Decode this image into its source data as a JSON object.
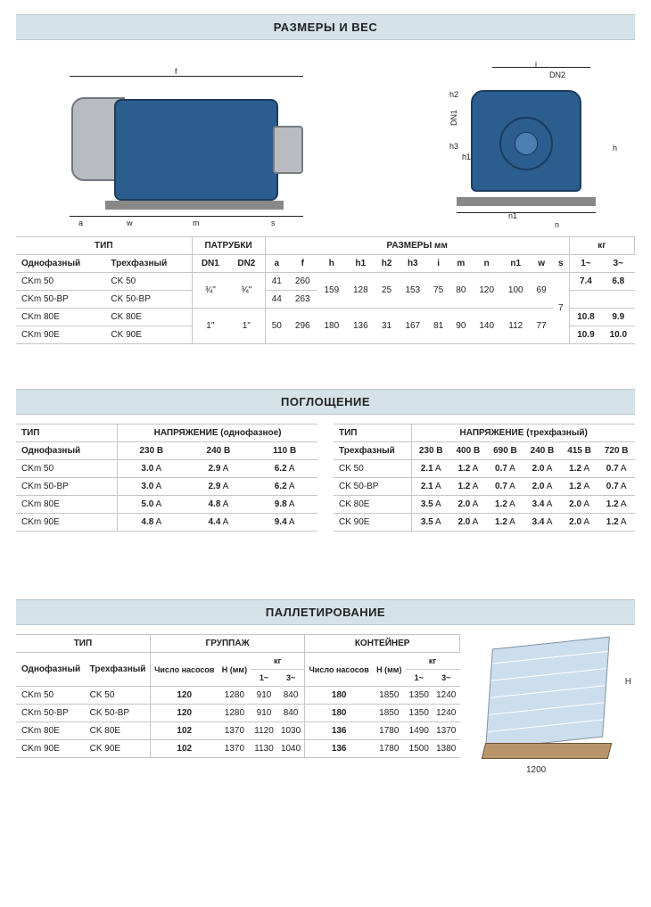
{
  "titles": {
    "dimensions": "РАЗМЕРЫ И ВЕС",
    "absorption": "ПОГЛОЩЕНИЕ",
    "palletizing": "ПАЛЛЕТИРОВАНИЕ"
  },
  "colors": {
    "header_bg": "#d5e2e8",
    "pump_body": "#2b5d8f",
    "pump_body_dark": "#1b3c5d",
    "pump_grey": "#b8bcc0",
    "border": "#c6c6c6"
  },
  "diagram": {
    "side_labels": {
      "a": "a",
      "w": "w",
      "m": "m",
      "s": "s",
      "f": "f"
    },
    "front_labels": {
      "i": "i",
      "DN2": "DN2",
      "DN1": "DN1",
      "h2": "h2",
      "h3": "h3",
      "h1": "h1",
      "h": "h",
      "n1": "n1",
      "n": "n"
    }
  },
  "dim_table": {
    "group_headers": {
      "type": "ТИП",
      "ports": "ПАТРУБКИ",
      "dims": "РАЗМЕРЫ мм",
      "kg": "кг"
    },
    "sub_headers": {
      "mono": "Однофазный",
      "three": "Трехфазный",
      "dn1": "DN1",
      "dn2": "DN2",
      "a": "a",
      "f": "f",
      "h": "h",
      "h1": "h1",
      "h2": "h2",
      "h3": "h3",
      "i": "i",
      "m": "m",
      "n": "n",
      "n1": "n1",
      "w": "w",
      "s": "s",
      "kg1": "1~",
      "kg3": "3~"
    },
    "rows": [
      {
        "mono": "CKm 50",
        "three": "CK 50",
        "dn1": "¾\"",
        "dn2": "¾\"",
        "a": "41",
        "f": "260",
        "h": "159",
        "h1": "128",
        "h2": "25",
        "h3": "153",
        "i": "75",
        "m": "80",
        "n": "120",
        "n1": "100",
        "w": "69",
        "s": "7",
        "kg1": "7.4",
        "kg3": "6.8"
      },
      {
        "mono": "CKm 50-BP",
        "three": "CK 50-BP",
        "dn1": "¾\"",
        "dn2": "¾\"",
        "a": "44",
        "f": "263",
        "h": "159",
        "h1": "128",
        "h2": "25",
        "h3": "153",
        "i": "75",
        "m": "80",
        "n": "120",
        "n1": "100",
        "w": "69",
        "s": "7",
        "kg1": "",
        "kg3": ""
      },
      {
        "mono": "CKm 80E",
        "three": "CK 80E",
        "dn1": "1\"",
        "dn2": "1\"",
        "a": "50",
        "f": "296",
        "h": "180",
        "h1": "136",
        "h2": "31",
        "h3": "167",
        "i": "81",
        "m": "90",
        "n": "140",
        "n1": "112",
        "w": "77",
        "s": "7",
        "kg1": "10.8",
        "kg3": "9.9"
      },
      {
        "mono": "CKm 90E",
        "three": "CK 90E",
        "dn1": "1\"",
        "dn2": "1\"",
        "a": "50",
        "f": "296",
        "h": "180",
        "h1": "136",
        "h2": "31",
        "h3": "167",
        "i": "81",
        "m": "90",
        "n": "140",
        "n1": "112",
        "w": "77",
        "s": "7",
        "kg1": "10.9",
        "kg3": "10.0"
      }
    ],
    "merges": {
      "dn_rows12": {
        "dn1": "¾\"",
        "dn2": "¾\""
      },
      "dn_rows34": {
        "dn1": "1\"",
        "dn2": "1\""
      },
      "shared12": {
        "h": "159",
        "h1": "128",
        "h2": "25",
        "h3": "153",
        "i": "75",
        "m": "80",
        "n": "120",
        "n1": "100",
        "w": "69"
      },
      "shared34": {
        "h": "180",
        "h1": "136",
        "h2": "31",
        "h3": "167",
        "i": "81",
        "m": "90",
        "n": "140",
        "n1": "112",
        "w": "77"
      },
      "s_all": "7"
    }
  },
  "absorption": {
    "type_label": "ТИП",
    "voltage_label_mono": "НАПРЯЖЕНИЕ (однофазное)",
    "voltage_label_three": "НАПРЯЖЕНИЕ (трехфазный)",
    "mono_sub": "Однофазный",
    "three_sub": "Трехфазный",
    "unit": "A",
    "mono": {
      "voltages": [
        "230 В",
        "240 В",
        "110 В"
      ],
      "rows": [
        {
          "name": "CKm 50",
          "vals": [
            "3.0",
            "2.9",
            "6.2"
          ]
        },
        {
          "name": "CKm 50-BP",
          "vals": [
            "3.0",
            "2.9",
            "6.2"
          ]
        },
        {
          "name": "CKm 80E",
          "vals": [
            "5.0",
            "4.8",
            "9.8"
          ]
        },
        {
          "name": "CKm 90E",
          "vals": [
            "4.8",
            "4.4",
            "9.4"
          ]
        }
      ]
    },
    "three": {
      "voltages": [
        "230 В",
        "400 В",
        "690 В",
        "240 В",
        "415 В",
        "720 В"
      ],
      "rows": [
        {
          "name": "CK 50",
          "vals": [
            "2.1",
            "1.2",
            "0.7",
            "2.0",
            "1.2",
            "0.7"
          ]
        },
        {
          "name": "CK 50-BP",
          "vals": [
            "2.1",
            "1.2",
            "0.7",
            "2.0",
            "1.2",
            "0.7"
          ]
        },
        {
          "name": "CK 80E",
          "vals": [
            "3.5",
            "2.0",
            "1.2",
            "3.4",
            "2.0",
            "1.2"
          ]
        },
        {
          "name": "CK 90E",
          "vals": [
            "3.5",
            "2.0",
            "1.2",
            "3.4",
            "2.0",
            "1.2"
          ]
        }
      ]
    }
  },
  "pallet": {
    "headers": {
      "type": "ТИП",
      "group": "ГРУППАЖ",
      "cont": "КОНТЕЙНЕР",
      "mono": "Однофазный",
      "three": "Трехфазный",
      "count": "Число насосов",
      "hmm": "H (мм)",
      "kg": "кг",
      "kg1": "1~",
      "kg3": "3~"
    },
    "rows": [
      {
        "mono": "CKm 50",
        "three": "CK 50",
        "g_count": "120",
        "g_h": "1280",
        "g_kg1": "910",
        "g_kg3": "840",
        "c_count": "180",
        "c_h": "1850",
        "c_kg1": "1350",
        "c_kg3": "1240"
      },
      {
        "mono": "CKm 50-BP",
        "three": "CK 50-BP",
        "g_count": "120",
        "g_h": "1280",
        "g_kg1": "910",
        "g_kg3": "840",
        "c_count": "180",
        "c_h": "1850",
        "c_kg1": "1350",
        "c_kg3": "1240"
      },
      {
        "mono": "CKm 80E",
        "three": "CK 80E",
        "g_count": "102",
        "g_h": "1370",
        "g_kg1": "1120",
        "g_kg3": "1030",
        "c_count": "136",
        "c_h": "1780",
        "c_kg1": "1490",
        "c_kg3": "1370"
      },
      {
        "mono": "CKm 90E",
        "three": "CK 90E",
        "g_count": "102",
        "g_h": "1370",
        "g_kg1": "1130",
        "g_kg3": "1040",
        "c_count": "136",
        "c_h": "1780",
        "c_kg1": "1500",
        "c_kg3": "1380"
      }
    ],
    "figure": {
      "height_label": "H",
      "base_label": "1200"
    }
  }
}
